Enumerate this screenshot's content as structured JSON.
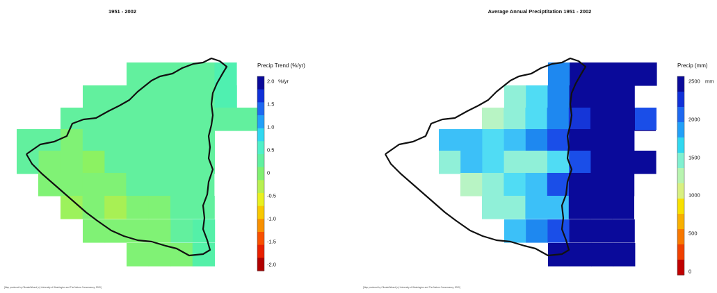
{
  "panels": [
    {
      "title": "1951 - 2002",
      "credit": "[Map produced by ClimateWizard (c) University of Washington and The Nature Conservancy, 2009]",
      "legend": {
        "title": "Precip Trend (%/yr)",
        "unit": "%/yr",
        "ticks": [
          "2.0",
          "1.5",
          "1.0",
          "0.5",
          "0",
          "-0.5",
          "-1.0",
          "-1.5",
          "-2.0"
        ],
        "color_scale": [
          "#0a0a9a",
          "#1030d8",
          "#1e68f0",
          "#22a0f8",
          "#30d8f0",
          "#50f0c8",
          "#60f0a0",
          "#80f070",
          "#b8f050",
          "#e8f020",
          "#f8c800",
          "#f89000",
          "#f85000",
          "#e82000",
          "#b00000"
        ]
      },
      "grid_colors": {
        "A": "#62f09e",
        "B": "#4ff0b0",
        "C": "#80f275",
        "D": "#9cf25c",
        "E": "#8cf262",
        "F": "#a8f054",
        "G": "#54f0a8"
      }
    },
    {
      "title": "Average Annual Preciptitation 1951 - 2002",
      "credit": "[Map produced by ClimateWizard (c) University of Washington and The Nature Conservancy, 2009]",
      "legend": {
        "title": "Precip (mm)",
        "unit": "mm",
        "ticks": [
          "2500",
          "2000",
          "1500",
          "1000",
          "500",
          "0"
        ],
        "color_scale": [
          "#0a0a9a",
          "#1030d8",
          "#1e68f0",
          "#22a0f8",
          "#30d8f0",
          "#80f0d0",
          "#b8f4b0",
          "#d8f080",
          "#f8e000",
          "#f8b000",
          "#f87800",
          "#f04000",
          "#c00000"
        ]
      },
      "grid_colors": {
        "N": "#0a0a9a",
        "M": "#1536d8",
        "S": "#1e88f0",
        "L": "#3cc0f8",
        "T": "#50dcf4",
        "Q": "#90f0d8",
        "W": "#b8f4c4",
        "V": "#1a4ee8"
      }
    }
  ]
}
